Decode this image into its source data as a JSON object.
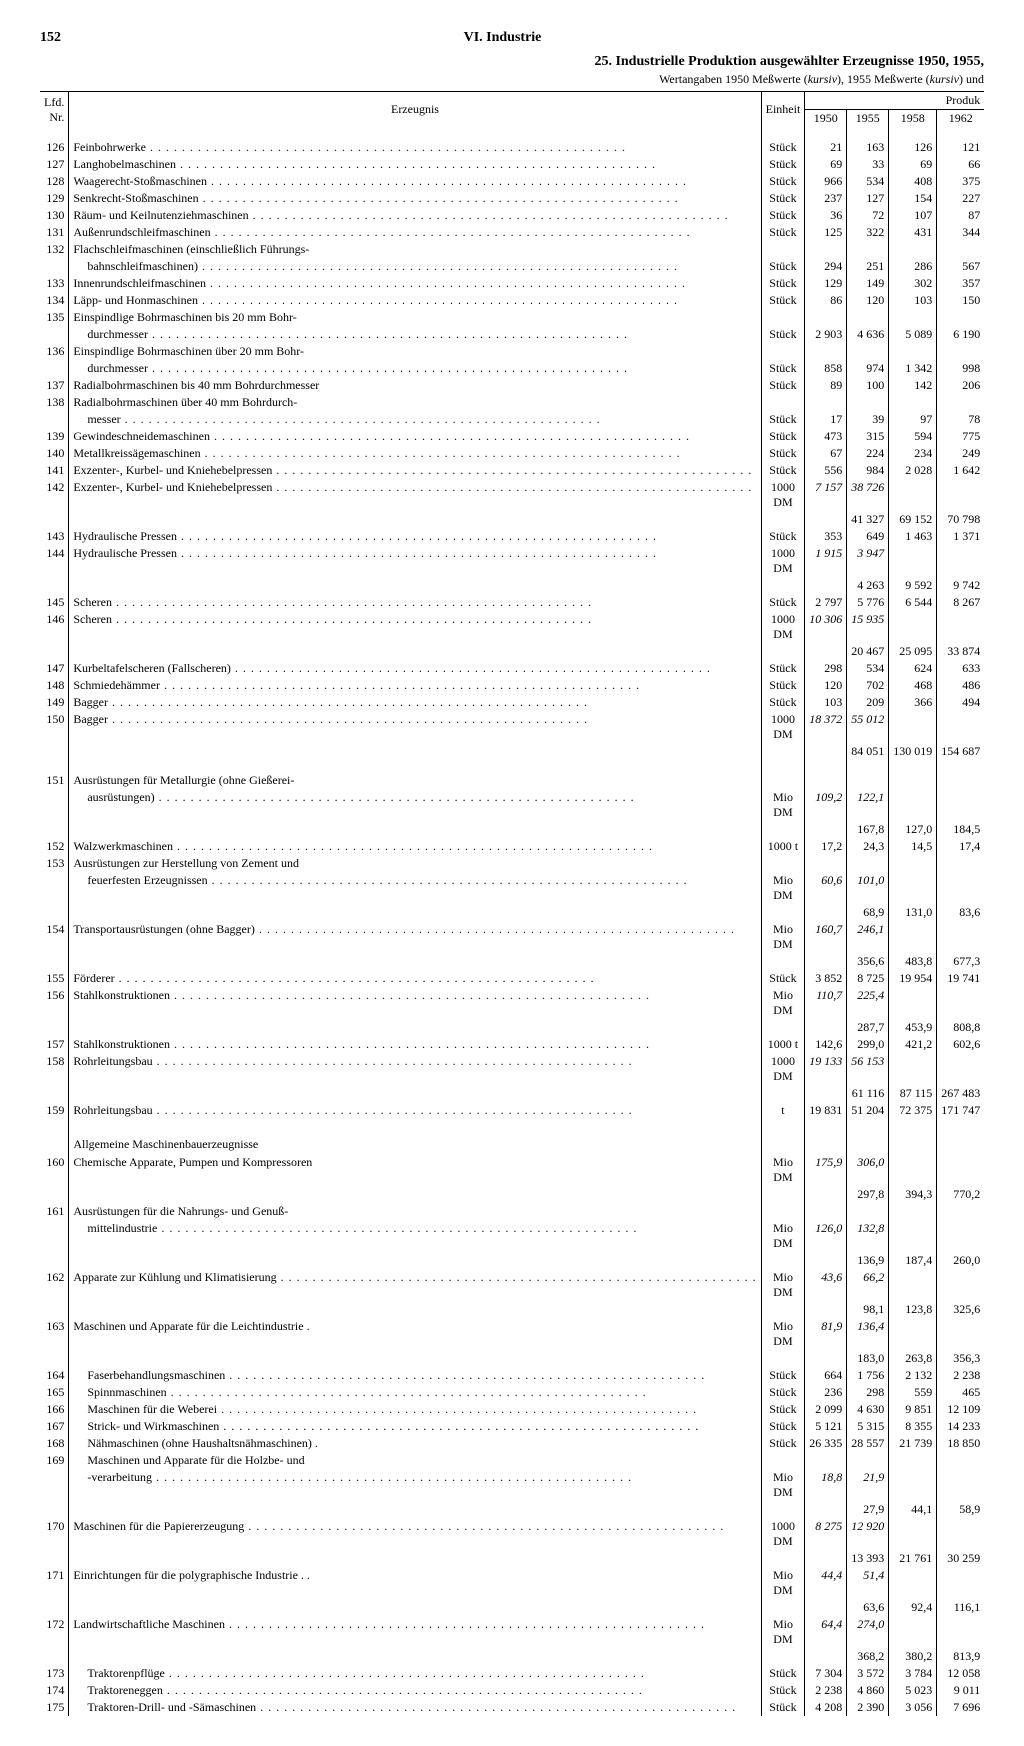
{
  "page_number": "152",
  "chapter": "VI. Industrie",
  "title": "25. Industrielle Produktion ausgewählter Erzeugnisse 1950, 1955,",
  "subtitle_a": "Wertangaben 1950 Meßwerte (",
  "subtitle_b": "kursiv",
  "subtitle_c": "), 1955 Meßwerte (",
  "subtitle_d": "kursiv",
  "subtitle_e": ") und",
  "head": {
    "nr": "Lfd.\nNr.",
    "erz": "Erzeugnis",
    "einh": "Einheit",
    "produk": "Produk",
    "y1950": "1950",
    "y1955": "1955",
    "y1958": "1958",
    "y1962": "1962"
  },
  "rows": [
    {
      "nr": "126",
      "erz": "Feinbohrwerke",
      "einh": "Stück",
      "y50": "21",
      "y55": "163",
      "y58": "126",
      "y62": "121"
    },
    {
      "nr": "127",
      "erz": "Langhobelmaschinen",
      "einh": "Stück",
      "y50": "69",
      "y55": "33",
      "y58": "69",
      "y62": "66"
    },
    {
      "nr": "128",
      "erz": "Waagerecht-Stoßmaschinen",
      "einh": "Stück",
      "y50": "966",
      "y55": "534",
      "y58": "408",
      "y62": "375"
    },
    {
      "nr": "129",
      "erz": "Senkrecht-Stoßmaschinen",
      "einh": "Stück",
      "y50": "237",
      "y55": "127",
      "y58": "154",
      "y62": "227"
    },
    {
      "nr": "130",
      "erz": "Räum- und Keilnutenziehmaschinen",
      "einh": "Stück",
      "y50": "36",
      "y55": "72",
      "y58": "107",
      "y62": "87"
    },
    {
      "nr": "131",
      "erz": "Außenrundschleifmaschinen",
      "einh": "Stück",
      "y50": "125",
      "y55": "322",
      "y58": "431",
      "y62": "344"
    },
    {
      "nr": "132",
      "erz": "Flachschleifmaschinen (einschließlich Führungs-",
      "nodots": true
    },
    {
      "cont": true,
      "erz": "bahnschleifmaschinen)",
      "einh": "Stück",
      "y50": "294",
      "y55": "251",
      "y58": "286",
      "y62": "567"
    },
    {
      "nr": "133",
      "erz": "Innenrundschleifmaschinen",
      "einh": "Stück",
      "y50": "129",
      "y55": "149",
      "y58": "302",
      "y62": "357"
    },
    {
      "nr": "134",
      "erz": "Läpp- und Honmaschinen",
      "einh": "Stück",
      "y50": "86",
      "y55": "120",
      "y58": "103",
      "y62": "150"
    },
    {
      "nr": "135",
      "erz": "Einspindlige Bohrmaschinen bis 20 mm Bohr-",
      "nodots": true
    },
    {
      "cont": true,
      "erz": "durchmesser",
      "einh": "Stück",
      "y50": "2 903",
      "y55": "4 636",
      "y58": "5 089",
      "y62": "6 190"
    },
    {
      "nr": "136",
      "erz": "Einspindlige Bohrmaschinen über 20 mm Bohr-",
      "nodots": true
    },
    {
      "cont": true,
      "erz": "durchmesser",
      "einh": "Stück",
      "y50": "858",
      "y55": "974",
      "y58": "1 342",
      "y62": "998"
    },
    {
      "nr": "137",
      "erz": "Radialbohrmaschinen bis 40 mm Bohrdurchmesser",
      "einh": "Stück",
      "y50": "89",
      "y55": "100",
      "y58": "142",
      "y62": "206",
      "nodots": true
    },
    {
      "nr": "138",
      "erz": "Radialbohrmaschinen über 40 mm Bohrdurch-",
      "nodots": true
    },
    {
      "cont": true,
      "erz": "messer",
      "einh": "Stück",
      "y50": "17",
      "y55": "39",
      "y58": "97",
      "y62": "78"
    },
    {
      "nr": "139",
      "erz": "Gewindeschneidemaschinen",
      "einh": "Stück",
      "y50": "473",
      "y55": "315",
      "y58": "594",
      "y62": "775"
    },
    {
      "nr": "140",
      "erz": "Metallkreissägemaschinen",
      "einh": "Stück",
      "y50": "67",
      "y55": "224",
      "y58": "234",
      "y62": "249"
    },
    {
      "nr": "141",
      "erz": "Exzenter-, Kurbel- und Kniehebelpressen",
      "einh": "Stück",
      "y50": "556",
      "y55": "984",
      "y58": "2 028",
      "y62": "1 642"
    },
    {
      "nr": "142",
      "erz": "Exzenter-, Kurbel- und Kniehebelpressen",
      "einh": "1000 DM",
      "y50": "7 157",
      "y55": "38 726",
      "y50ital": true,
      "y55ital": true
    },
    {
      "cont": true,
      "y55": "41 327",
      "y58": "69 152",
      "y62": "70 798"
    },
    {
      "nr": "143",
      "erz": "Hydraulische Pressen",
      "einh": "Stück",
      "y50": "353",
      "y55": "649",
      "y58": "1 463",
      "y62": "1 371"
    },
    {
      "nr": "144",
      "erz": "Hydraulische Pressen",
      "einh": "1000 DM",
      "y50": "1 915",
      "y55": "3 947",
      "y50ital": true,
      "y55ital": true
    },
    {
      "cont": true,
      "y55": "4 263",
      "y58": "9 592",
      "y62": "9 742"
    },
    {
      "nr": "145",
      "erz": "Scheren",
      "einh": "Stück",
      "y50": "2 797",
      "y55": "5 776",
      "y58": "6 544",
      "y62": "8 267"
    },
    {
      "nr": "146",
      "erz": "Scheren",
      "einh": "1000 DM",
      "y50": "10 306",
      "y55": "15 935",
      "y50ital": true,
      "y55ital": true
    },
    {
      "cont": true,
      "y55": "20 467",
      "y58": "25 095",
      "y62": "33 874"
    },
    {
      "nr": "147",
      "erz": "Kurbeltafelscheren (Fallscheren)",
      "einh": "Stück",
      "y50": "298",
      "y55": "534",
      "y58": "624",
      "y62": "633"
    },
    {
      "nr": "148",
      "erz": "Schmiedehämmer",
      "einh": "Stück",
      "y50": "120",
      "y55": "702",
      "y58": "468",
      "y62": "486"
    },
    {
      "nr": "149",
      "erz": "Bagger",
      "einh": "Stück",
      "y50": "103",
      "y55": "209",
      "y58": "366",
      "y62": "494"
    },
    {
      "nr": "150",
      "erz": "Bagger",
      "einh": "1000 DM",
      "y50": "18 372",
      "y55": "55 012",
      "y50ital": true,
      "y55ital": true
    },
    {
      "cont": true,
      "y55": "84 051",
      "y58": "130 019",
      "y62": "154 687"
    },
    {
      "spacer": true
    },
    {
      "nr": "151",
      "erz": "Ausrüstungen für Metallurgie (ohne Gießerei-",
      "nodots": true
    },
    {
      "cont": true,
      "erz": "ausrüstungen)",
      "einh": "Mio DM",
      "y50": "109,2",
      "y55": "122,1",
      "y50ital": true,
      "y55ital": true
    },
    {
      "cont": true,
      "y55": "167,8",
      "y58": "127,0",
      "y62": "184,5"
    },
    {
      "nr": "152",
      "erz": "Walzwerkmaschinen",
      "einh": "1000 t",
      "y50": "17,2",
      "y55": "24,3",
      "y58": "14,5",
      "y62": "17,4"
    },
    {
      "nr": "153",
      "erz": "Ausrüstungen zur Herstellung von Zement und",
      "nodots": true
    },
    {
      "cont": true,
      "erz": "feuerfesten Erzeugnissen",
      "einh": "Mio DM",
      "y50": "60,6",
      "y55": "101,0",
      "y50ital": true,
      "y55ital": true
    },
    {
      "cont": true,
      "y55": "68,9",
      "y58": "131,0",
      "y62": "83,6"
    },
    {
      "nr": "154",
      "erz": "Transportausrüstungen (ohne Bagger)",
      "einh": "Mio DM",
      "y50": "160,7",
      "y55": "246,1",
      "y50ital": true,
      "y55ital": true
    },
    {
      "cont": true,
      "y55": "356,6",
      "y58": "483,8",
      "y62": "677,3"
    },
    {
      "nr": "155",
      "erz": "Förderer",
      "einh": "Stück",
      "y50": "3 852",
      "y55": "8 725",
      "y58": "19 954",
      "y62": "19 741"
    },
    {
      "nr": "156",
      "erz": "Stahlkonstruktionen",
      "einh": "Mio DM",
      "y50": "110,7",
      "y55": "225,4",
      "y50ital": true,
      "y55ital": true
    },
    {
      "cont": true,
      "y55": "287,7",
      "y58": "453,9",
      "y62": "808,8"
    },
    {
      "nr": "157",
      "erz": "Stahlkonstruktionen",
      "einh": "1000 t",
      "y50": "142,6",
      "y55": "299,0",
      "y58": "421,2",
      "y62": "602,6"
    },
    {
      "nr": "158",
      "erz": "Rohrleitungsbau",
      "einh": "1000 DM",
      "y50": "19 133",
      "y55": "56 153",
      "y50ital": true,
      "y55ital": true
    },
    {
      "cont": true,
      "y55": "61 116",
      "y58": "87 115",
      "y62": "267 483"
    },
    {
      "nr": "159",
      "erz": "Rohrleitungsbau",
      "einh": "t",
      "y50": "19 831",
      "y55": "51 204",
      "y58": "72 375",
      "y62": "171 747"
    },
    {
      "spacer": true
    },
    {
      "section": "Allgemeine Maschinenbauerzeugnisse"
    },
    {
      "nr": "160",
      "erz": "Chemische Apparate, Pumpen und Kompressoren",
      "einh": "Mio DM",
      "y50": "175,9",
      "y55": "306,0",
      "y50ital": true,
      "y55ital": true,
      "nodots": true
    },
    {
      "cont": true,
      "y55": "297,8",
      "y58": "394,3",
      "y62": "770,2"
    },
    {
      "nr": "161",
      "erz": "Ausrüstungen für die Nahrungs- und Genuß-",
      "nodots": true
    },
    {
      "cont": true,
      "erz": "mittelindustrie",
      "einh": "Mio DM",
      "y50": "126,0",
      "y55": "132,8",
      "y50ital": true,
      "y55ital": true
    },
    {
      "cont": true,
      "y55": "136,9",
      "y58": "187,4",
      "y62": "260,0"
    },
    {
      "nr": "162",
      "erz": "Apparate zur Kühlung und Klimatisierung",
      "einh": "Mio DM",
      "y50": "43,6",
      "y55": "66,2",
      "y50ital": true,
      "y55ital": true
    },
    {
      "cont": true,
      "y55": "98,1",
      "y58": "123,8",
      "y62": "325,6"
    },
    {
      "nr": "163",
      "erz": "Maschinen und Apparate für die Leichtindustrie",
      "einh": "Mio DM",
      "y50": "81,9",
      "y55": "136,4",
      "y50ital": true,
      "y55ital": true,
      "nodots": true,
      "trail": " ."
    },
    {
      "cont": true,
      "y55": "183,0",
      "y58": "263,8",
      "y62": "356,3"
    },
    {
      "nr": "164",
      "erz": "Faserbehandlungsmaschinen",
      "einh": "Stück",
      "y50": "664",
      "y55": "1 756",
      "y58": "2 132",
      "y62": "2 238",
      "indent": true
    },
    {
      "nr": "165",
      "erz": "Spinnmaschinen",
      "einh": "Stück",
      "y50": "236",
      "y55": "298",
      "y58": "559",
      "y62": "465",
      "indent": true
    },
    {
      "nr": "166",
      "erz": "Maschinen für die Weberei",
      "einh": "Stück",
      "y50": "2 099",
      "y55": "4 630",
      "y58": "9 851",
      "y62": "12 109",
      "indent": true
    },
    {
      "nr": "167",
      "erz": "Strick- und Wirkmaschinen",
      "einh": "Stück",
      "y50": "5 121",
      "y55": "5 315",
      "y58": "8 355",
      "y62": "14 233",
      "indent": true
    },
    {
      "nr": "168",
      "erz": "Nähmaschinen (ohne Haushaltsnähmaschinen)",
      "einh": "Stück",
      "y50": "26 335",
      "y55": "28 557",
      "y58": "21 739",
      "y62": "18 850",
      "indent": true,
      "nodots": true,
      "trail": " ."
    },
    {
      "nr": "169",
      "erz": "Maschinen und Apparate für die Holzbe- und",
      "nodots": true,
      "indent": true
    },
    {
      "cont": true,
      "erz": "-verarbeitung",
      "einh": "Mio DM",
      "y50": "18,8",
      "y55": "21,9",
      "y50ital": true,
      "y55ital": true,
      "indent": true
    },
    {
      "cont": true,
      "y55": "27,9",
      "y58": "44,1",
      "y62": "58,9"
    },
    {
      "nr": "170",
      "erz": "Maschinen für die Papiererzeugung",
      "einh": "1000 DM",
      "y50": "8 275",
      "y55": "12 920",
      "y50ital": true,
      "y55ital": true
    },
    {
      "cont": true,
      "y55": "13 393",
      "y58": "21 761",
      "y62": "30 259"
    },
    {
      "nr": "171",
      "erz": "Einrichtungen für die polygraphische Industrie",
      "einh": "Mio DM",
      "y50": "44,4",
      "y55": "51,4",
      "y50ital": true,
      "y55ital": true,
      "nodots": true,
      "trail": " . ."
    },
    {
      "cont": true,
      "y55": "63,6",
      "y58": "92,4",
      "y62": "116,1"
    },
    {
      "nr": "172",
      "erz": "Landwirtschaftliche Maschinen",
      "einh": "Mio DM",
      "y50": "64,4",
      "y55": "274,0",
      "y50ital": true,
      "y55ital": true
    },
    {
      "cont": true,
      "y55": "368,2",
      "y58": "380,2",
      "y62": "813,9"
    },
    {
      "nr": "173",
      "erz": "Traktorenpflüge",
      "einh": "Stück",
      "y50": "7 304",
      "y55": "3 572",
      "y58": "3 784",
      "y62": "12 058",
      "indent": true
    },
    {
      "nr": "174",
      "erz": "Traktoreneggen",
      "einh": "Stück",
      "y50": "2 238",
      "y55": "4 860",
      "y58": "5 023",
      "y62": "9 011",
      "indent": true
    },
    {
      "nr": "175",
      "erz": "Traktoren-Drill- und -Sämaschinen",
      "einh": "Stück",
      "y50": "4 208",
      "y55": "2 390",
      "y58": "3 056",
      "y62": "7 696",
      "indent": true
    }
  ]
}
